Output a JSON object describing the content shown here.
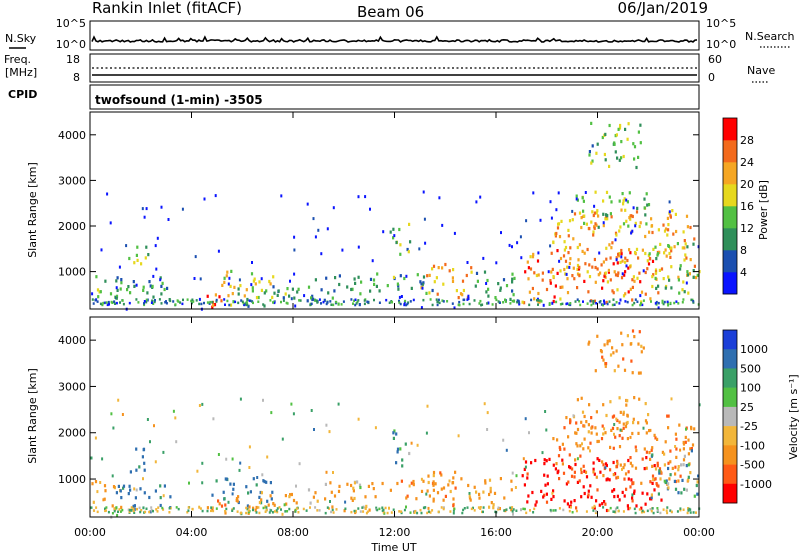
{
  "header": {
    "station": "Rankin Inlet (fitACF)",
    "beam": "Beam 06",
    "date": "06/Jan/2019"
  },
  "nsky_panel": {
    "left_label": "N.Sky",
    "right_label": "N.Search",
    "left_ticks": [
      "10^5",
      "10^0"
    ],
    "right_ticks": [
      "10^5",
      "10^0"
    ]
  },
  "freq_panel": {
    "left_label_1": "Freq.",
    "left_label_2": "[MHz]",
    "left_ticks": [
      "18",
      "8"
    ],
    "right_label": "Nave",
    "right_ticks": [
      "60",
      "0"
    ]
  },
  "cpid": {
    "label": "CPID",
    "mode": "twofsound (1-min) -3505"
  },
  "colors": {
    "power_scale": [
      "#0a14ff",
      "#1b4fb0",
      "#2f8f5a",
      "#52c043",
      "#e6d81e",
      "#f5a623",
      "#f36a1c",
      "#ff0000"
    ],
    "velocity_scale": [
      "#1b3fd8",
      "#2f6fb0",
      "#3aa067",
      "#52c043",
      "#b9b9b9",
      "#f2b63a",
      "#f5921e",
      "#ff5a16",
      "#ff0000"
    ]
  },
  "chart_data": [
    {
      "type": "heatmap",
      "name": "power",
      "ylabel": "Slant Range [km]",
      "ylim": [
        180,
        4500
      ],
      "yticks": [
        1000,
        2000,
        3000,
        4000
      ],
      "xlim_hours": [
        0,
        24
      ],
      "xticks": [
        "00:00",
        "04:00",
        "08:00",
        "12:00",
        "16:00",
        "20:00",
        "00:00"
      ],
      "colorbar": {
        "label": "Power [dB]",
        "range": [
          0,
          32
        ],
        "ticks": [
          "4",
          "8",
          "12",
          "16",
          "20",
          "24",
          "28"
        ]
      },
      "patches": [
        {
          "t": [
            0.0,
            1.2
          ],
          "r": [
            350,
            1000
          ],
          "v": 12
        },
        {
          "t": [
            1.5,
            2.3
          ],
          "r": [
            1150,
            1750
          ],
          "v": 16
        },
        {
          "t": [
            1.0,
            3.2
          ],
          "r": [
            300,
            900
          ],
          "v": 10
        },
        {
          "t": [
            4.5,
            5.3
          ],
          "r": [
            250,
            700
          ],
          "v": 27
        },
        {
          "t": [
            4.6,
            7.2
          ],
          "r": [
            450,
            1050
          ],
          "v": 18
        },
        {
          "t": [
            5.5,
            8.2
          ],
          "r": [
            250,
            750
          ],
          "v": 11
        },
        {
          "t": [
            8.5,
            11.2
          ],
          "r": [
            300,
            1000
          ],
          "v": 10
        },
        {
          "t": [
            11.8,
            12.6
          ],
          "r": [
            1300,
            2100
          ],
          "v": 13
        },
        {
          "t": [
            11.2,
            13.6
          ],
          "r": [
            550,
            1000
          ],
          "v": 12
        },
        {
          "t": [
            13.0,
            15.0
          ],
          "r": [
            450,
            1200
          ],
          "v": 22
        },
        {
          "t": [
            15.0,
            16.8
          ],
          "r": [
            350,
            1050
          ],
          "v": 10
        },
        {
          "t": [
            17.0,
            22.5
          ],
          "r": [
            350,
            1500
          ],
          "v": 25
        },
        {
          "t": [
            18.2,
            23.8
          ],
          "r": [
            900,
            2400
          ],
          "v": 22
        },
        {
          "t": [
            22.0,
            24.0
          ],
          "r": [
            550,
            1700
          ],
          "v": 15
        },
        {
          "t": [
            19.0,
            22.0
          ],
          "r": [
            2000,
            2800
          ],
          "v": 16
        },
        {
          "t": [
            19.6,
            21.8
          ],
          "r": [
            3300,
            4300
          ],
          "v": 13
        }
      ]
    },
    {
      "type": "heatmap",
      "name": "velocity",
      "ylabel": "Slant Range [km]",
      "ylim": [
        180,
        4500
      ],
      "yticks": [
        1000,
        2000,
        3000,
        4000
      ],
      "xlim_hours": [
        0,
        24
      ],
      "xticks": [
        "00:00",
        "04:00",
        "08:00",
        "12:00",
        "16:00",
        "20:00",
        "00:00"
      ],
      "xlabel": "Time UT",
      "colorbar": {
        "label": "Velocity [m s⁻¹]",
        "ticks": [
          "1000",
          "500",
          "100",
          "25",
          "-25",
          "-100",
          "-500",
          "-1000"
        ]
      },
      "patches": [
        {
          "t": [
            0.0,
            1.2
          ],
          "r": [
            350,
            1000
          ],
          "v": -100
        },
        {
          "t": [
            1.5,
            2.3
          ],
          "r": [
            1150,
            1750
          ],
          "v": 120
        },
        {
          "t": [
            1.0,
            3.2
          ],
          "r": [
            300,
            900
          ],
          "v": 200
        },
        {
          "t": [
            4.5,
            5.3
          ],
          "r": [
            250,
            700
          ],
          "v": -300
        },
        {
          "t": [
            4.6,
            7.2
          ],
          "r": [
            450,
            1050
          ],
          "v": 150
        },
        {
          "t": [
            5.5,
            8.2
          ],
          "r": [
            250,
            750
          ],
          "v": -150
        },
        {
          "t": [
            8.5,
            11.2
          ],
          "r": [
            300,
            1000
          ],
          "v": -120
        },
        {
          "t": [
            11.8,
            12.6
          ],
          "r": [
            1300,
            2100
          ],
          "v": 100
        },
        {
          "t": [
            11.2,
            13.6
          ],
          "r": [
            550,
            1000
          ],
          "v": -200
        },
        {
          "t": [
            13.0,
            15.0
          ],
          "r": [
            450,
            1200
          ],
          "v": -200
        },
        {
          "t": [
            15.0,
            16.8
          ],
          "r": [
            350,
            1050
          ],
          "v": -150
        },
        {
          "t": [
            17.0,
            22.5
          ],
          "r": [
            350,
            1500
          ],
          "v": -600
        },
        {
          "t": [
            18.2,
            23.8
          ],
          "r": [
            900,
            2400
          ],
          "v": -300
        },
        {
          "t": [
            22.0,
            24.0
          ],
          "r": [
            550,
            1700
          ],
          "v": 50
        },
        {
          "t": [
            19.0,
            22.0
          ],
          "r": [
            2000,
            2800
          ],
          "v": -150
        },
        {
          "t": [
            19.6,
            21.8
          ],
          "r": [
            3300,
            4300
          ],
          "v": -200
        }
      ]
    }
  ]
}
